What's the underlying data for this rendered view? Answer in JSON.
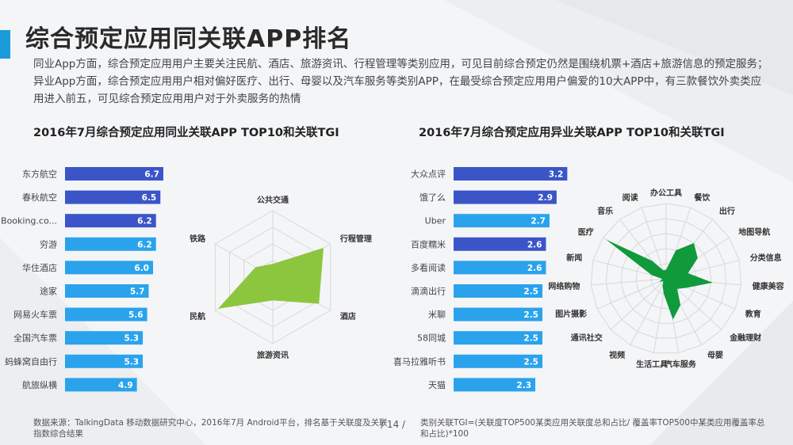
{
  "header": {
    "title": "综合预定应用同关联APP排名",
    "description": "同业App方面，综合预定应用用户主要关注民航、酒店、旅游资讯、行程管理等类别应用，可见目前综合预定仍然是围绕机票+酒店+旅游信息的预定服务；异业App方面，综合预定应用用户相对偏好医疗、出行、母婴以及汽车服务等类别APP，在最受综合预定应用用户偏爱的10大APP中，有三款餐饮外卖类应用进入前五，可见综合预定应用用户对于外卖服务的热情"
  },
  "footer": {
    "source": "数据来源：TalkingData 移动数据研究中心，2016年7月 Android平台，排名基于关联度及关联指数综合结果",
    "page": "/ 14 /",
    "note": "类别关联TGI=(关联度TOP500某类应用关联度总和占比/ 覆盖率TOP500中某类应用覆盖率总和占比)*100"
  },
  "colors": {
    "dark_bar": "#3b55c9",
    "light_bar": "#2aa3ec",
    "radar_fill": "#8cc63f",
    "radar2_fill": "#109a3c"
  },
  "chart_data": [
    {
      "type": "bar",
      "orientation": "horizontal",
      "title": "2016年7月综合预定应用同业关联APP TOP10和关联TGI",
      "categories": [
        "东方航空",
        "春秋航空",
        "Booking.co...",
        "穷游",
        "华住酒店",
        "途家",
        "网易火车票",
        "全国汽车票",
        "蚂蜂窝自由行",
        "航旅纵横"
      ],
      "values": [
        6.7,
        6.5,
        6.2,
        6.2,
        6.0,
        5.7,
        5.6,
        5.3,
        5.3,
        4.9
      ],
      "value_labels": [
        "6.7",
        "6.5",
        "6.2",
        "6.2",
        "6.0",
        "5.7",
        "5.6",
        "5.3",
        "5.3",
        "4.9"
      ],
      "bar_colors": [
        "dark",
        "dark",
        "dark",
        "light",
        "light",
        "light",
        "light",
        "light",
        "light",
        "light"
      ],
      "xlim": [
        0,
        10
      ]
    },
    {
      "type": "radar",
      "axes": [
        "公共交通",
        "行程管理",
        "酒店",
        "旅游资讯",
        "民航",
        "铁路"
      ],
      "values": [
        0.2,
        0.88,
        0.8,
        0.35,
        0.95,
        0.3
      ],
      "range": [
        0,
        1
      ]
    },
    {
      "type": "bar",
      "orientation": "horizontal",
      "title": "2016年7月综合预定应用异业关联APP TOP10和关联TGI",
      "categories": [
        "大众点评",
        "饿了么",
        "Uber",
        "百度糯米",
        "多看阅读",
        "滴滴出行",
        "米聊",
        "58同城",
        "喜马拉雅听书",
        "天猫"
      ],
      "values": [
        3.2,
        2.9,
        2.7,
        2.6,
        2.6,
        2.5,
        2.5,
        2.5,
        2.5,
        2.3
      ],
      "value_labels": [
        "3.2",
        "2.9",
        "2.7",
        "2.6",
        "2.6",
        "2.5",
        "2.5",
        "2.5",
        "2.5",
        "2.3"
      ],
      "bar_colors": [
        "dark",
        "dark",
        "light",
        "dark",
        "light",
        "light",
        "light",
        "light",
        "light",
        "light"
      ],
      "xlim": [
        0,
        5
      ]
    },
    {
      "type": "radar",
      "axes": [
        "办公工具",
        "餐饮",
        "出行",
        "地图导航",
        "分类信息",
        "健康美容",
        "教育",
        "金融理财",
        "母婴",
        "汽车服务",
        "生活工具",
        "视频",
        "通讯社交",
        "图片摄影",
        "网络购物",
        "新闻",
        "医疗",
        "音乐",
        "阅读"
      ],
      "values": [
        0.12,
        0.4,
        0.6,
        0.5,
        0.3,
        0.62,
        0.3,
        0.2,
        0.4,
        0.55,
        0.2,
        0.1,
        0.05,
        0.1,
        0.05,
        0.2,
        0.95,
        0.3,
        0.12
      ],
      "range": [
        0,
        1
      ]
    }
  ]
}
